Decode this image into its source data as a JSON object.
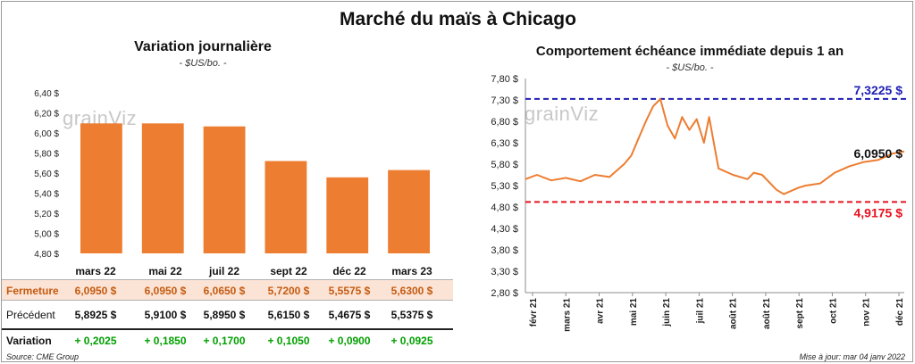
{
  "header": {
    "title": "Marché du maïs à Chicago"
  },
  "watermark": "grainViz",
  "left_panel": {
    "title": "Variation journalière",
    "unit": "- $US/bo. -"
  },
  "right_panel": {
    "title": "Comportement échéance immédiate depuis 1 an",
    "unit": "- $US/bo. -"
  },
  "table": {
    "row_labels": [
      "Fermeture",
      "Précédent",
      "Variation"
    ],
    "columns": [
      {
        "month": "mars 22",
        "close": "6,0950 $",
        "previous": "5,8925 $",
        "change": "+ 0,2025"
      },
      {
        "month": "mai 22",
        "close": "6,0950 $",
        "previous": "5,9100 $",
        "change": "+ 0,1850"
      },
      {
        "month": "juil 22",
        "close": "6,0650 $",
        "previous": "5,8950 $",
        "change": "+ 0,1700"
      },
      {
        "month": "sept 22",
        "close": "5,7200 $",
        "previous": "5,6150 $",
        "change": "+ 0,1050"
      },
      {
        "month": "déc 22",
        "close": "5,5575 $",
        "previous": "5,4675 $",
        "change": "+ 0,0900"
      },
      {
        "month": "mars 23",
        "close": "5,6300 $",
        "previous": "5,5375 $",
        "change": "+ 0,0925"
      }
    ]
  },
  "footer": {
    "source": "Source: CME Group",
    "updated": "Mise à jour: mar 04 janv 2022"
  },
  "colors": {
    "bar": "#ed7d31",
    "line": "#ed7d31",
    "high": "#1f1fb4",
    "low": "#e8101e",
    "gain": "#00a000"
  },
  "chart_data": [
    {
      "type": "bar",
      "title": "Variation journalière",
      "ylabel": "$US/bo.",
      "categories": [
        "mars 22",
        "mai 22",
        "juil 22",
        "sept 22",
        "déc 22",
        "mars 23"
      ],
      "values": [
        6.095,
        6.095,
        6.065,
        5.72,
        5.5575,
        5.63
      ],
      "ylim": [
        4.8,
        6.4
      ],
      "yticks": [
        4.8,
        5.0,
        5.2,
        5.4,
        5.6,
        5.8,
        6.0,
        6.2,
        6.4
      ],
      "ytick_labels": [
        "4,80 $",
        "5,00 $",
        "5,20 $",
        "5,40 $",
        "5,60 $",
        "5,80 $",
        "6,00 $",
        "6,20 $",
        "6,40 $"
      ],
      "grid": false
    },
    {
      "type": "line",
      "title": "Comportement échéance immédiate depuis 1 an",
      "ylabel": "$US/bo.",
      "ylim": [
        2.8,
        7.8
      ],
      "yticks": [
        2.8,
        3.3,
        3.8,
        4.3,
        4.8,
        5.3,
        5.8,
        6.3,
        6.8,
        7.3,
        7.8
      ],
      "ytick_labels": [
        "2,80 $",
        "3,30 $",
        "3,80 $",
        "4,30 $",
        "4,80 $",
        "5,30 $",
        "5,80 $",
        "6,30 $",
        "6,80 $",
        "7,30 $",
        "7,80 $"
      ],
      "xtick_labels": [
        "févr 21",
        "mars 21",
        "avr 21",
        "mai 21",
        "juin 21",
        "juil 21",
        "août 21",
        "août 21",
        "sept 21",
        "oct 21",
        "nov 21",
        "déc 21"
      ],
      "x": [
        "2021-01-04",
        "2021-01-15",
        "2021-01-29",
        "2021-02-12",
        "2021-02-26",
        "2021-03-12",
        "2021-03-26",
        "2021-04-09",
        "2021-04-16",
        "2021-04-23",
        "2021-04-30",
        "2021-05-07",
        "2021-05-14",
        "2021-05-21",
        "2021-05-28",
        "2021-06-04",
        "2021-06-11",
        "2021-06-18",
        "2021-06-25",
        "2021-06-30",
        "2021-07-09",
        "2021-07-23",
        "2021-08-06",
        "2021-08-12",
        "2021-08-20",
        "2021-09-03",
        "2021-09-10",
        "2021-09-24",
        "2021-10-01",
        "2021-10-15",
        "2021-10-29",
        "2021-11-12",
        "2021-11-26",
        "2021-12-10",
        "2021-12-24",
        "2022-01-04"
      ],
      "series": [
        {
          "values": [
            5.45,
            5.55,
            5.42,
            5.48,
            5.4,
            5.55,
            5.5,
            5.8,
            6.0,
            6.4,
            6.8,
            7.15,
            7.32,
            6.7,
            6.4,
            6.9,
            6.6,
            6.85,
            6.3,
            6.9,
            5.7,
            5.55,
            5.45,
            5.6,
            5.55,
            5.2,
            5.1,
            5.25,
            5.3,
            5.35,
            5.6,
            5.75,
            5.85,
            5.9,
            6.05,
            6.095
          ]
        }
      ],
      "reference_lines": [
        {
          "label": "7,3225 $",
          "value": 7.3225
        },
        {
          "label": "4,9175 $",
          "value": 4.9175
        }
      ],
      "last_value_label": "6,0950 $",
      "grid": false
    }
  ]
}
